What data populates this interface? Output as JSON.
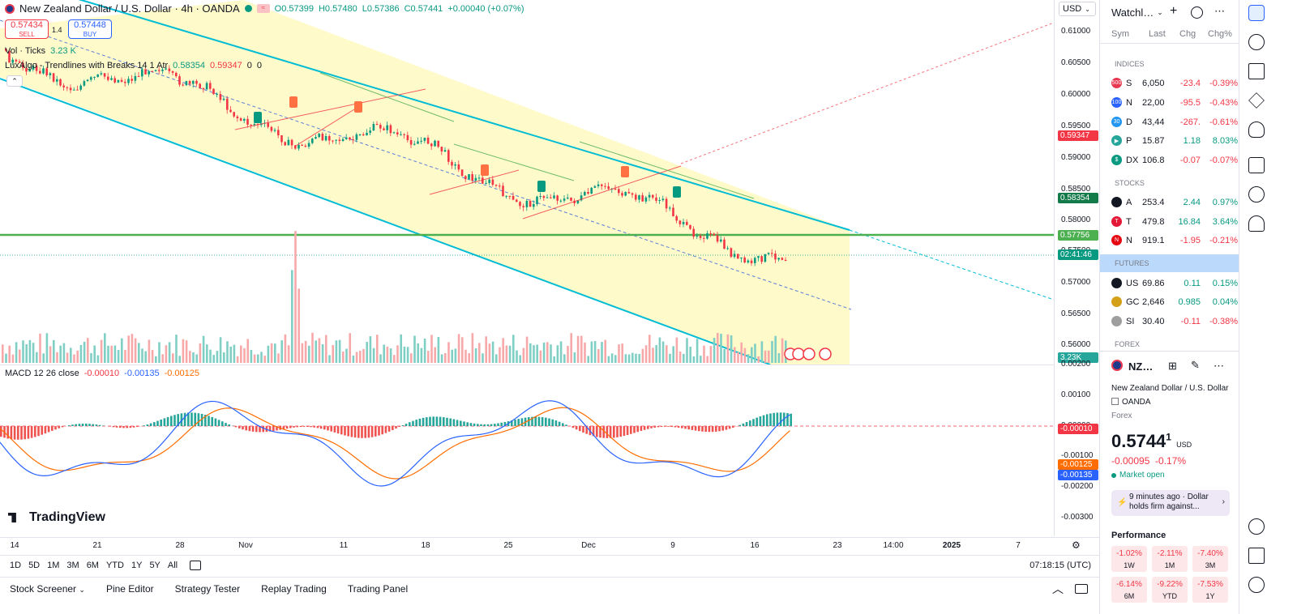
{
  "header": {
    "symbol_title": "New Zealand Dollar / U.S. Dollar · 4h · OANDA",
    "ohlc_o": "O0.57399",
    "ohlc_h": "H0.57480",
    "ohlc_l": "L0.57386",
    "ohlc_c": "C0.57441",
    "ohlc_change": "+0.00040 (+0.07%)",
    "sell_price": "0.57434",
    "sell_label": "SELL",
    "spread": "1.4",
    "buy_price": "0.57448",
    "buy_label": "BUY",
    "vol_label": "Vol · Ticks",
    "vol_value": "3.23 K",
    "indicator_name": "LuxAlgo - Trendlines with Breaks 14 1 Atr",
    "indicator_v1": "0.58354",
    "indicator_v2": "0.59347",
    "indicator_v3": "0",
    "indicator_v4": "0",
    "currency": "USD"
  },
  "price_axis": {
    "labels": [
      "0.61000",
      "0.60500",
      "0.60000",
      "0.59500",
      "0.59000",
      "0.58500",
      "0.58000",
      "0.57500",
      "0.57000",
      "0.56500",
      "0.56000"
    ],
    "tag_red": "0.59347",
    "tag_green_dark": "0.58354",
    "tag_green": "0.57756",
    "tag_countdown": "02:41:46",
    "tag_volume": "3.23K"
  },
  "macd": {
    "label": "MACD 12 26 close",
    "v1": "-0.00010",
    "v2": "-0.00135",
    "v3": "-0.00125",
    "axis": [
      "0.00200",
      "0.00100",
      "0.00000",
      "-0.00100",
      "-0.00200",
      "-0.00300"
    ],
    "tag_hist": "-0.00010",
    "tag_signal": "-0.00125",
    "tag_macd": "-0.00135"
  },
  "time_axis": [
    "14",
    "21",
    "28",
    "Nov",
    "11",
    "18",
    "25",
    "Dec",
    "9",
    "16",
    "23",
    "14:00",
    "2025",
    "7"
  ],
  "range_bar": {
    "ranges": [
      "1D",
      "5D",
      "1M",
      "3M",
      "6M",
      "YTD",
      "1Y",
      "5Y",
      "All"
    ],
    "clock": "07:18:15 (UTC)"
  },
  "bottom_tabs": [
    "Stock Screener",
    "Pine Editor",
    "Strategy Tester",
    "Replay Trading",
    "Trading Panel"
  ],
  "watermark": "TradingView",
  "watchlist": {
    "title": "Watchl…",
    "cols": [
      "Sym",
      "Last",
      "Chg",
      "Chg%"
    ],
    "sections": {
      "indices": "INDICES",
      "stocks": "STOCKS",
      "futures": "FUTURES",
      "forex": "FOREX"
    },
    "rows": [
      {
        "icon": "500",
        "icolor": "#e8384f",
        "sym": "S",
        "last": "6,050",
        "chg": "-23.4",
        "pct": "-0.39%",
        "dir": "down"
      },
      {
        "icon": "100",
        "icolor": "#2962ff",
        "sym": "N",
        "last": "22,00",
        "chg": "-95.5",
        "pct": "-0.43%",
        "dir": "down"
      },
      {
        "icon": "30",
        "icolor": "#2196f3",
        "sym": "D",
        "last": "43,44",
        "chg": "-267.",
        "pct": "-0.61%",
        "dir": "down"
      },
      {
        "icon": "▶",
        "icolor": "#26a69a",
        "sym": "P",
        "last": "15.87",
        "chg": "1.18",
        "pct": "8.03%",
        "dir": "up"
      },
      {
        "icon": "$",
        "icolor": "#089981",
        "sym": "DX",
        "last": "106.8",
        "chg": "-0.07",
        "pct": "-0.07%",
        "dir": "down"
      },
      {
        "icon": "",
        "icolor": "#131722",
        "sym": "A",
        "last": "253.4",
        "chg": "2.44",
        "pct": "0.97%",
        "dir": "up"
      },
      {
        "icon": "T",
        "icolor": "#e31937",
        "sym": "T",
        "last": "479.8",
        "chg": "16.84",
        "pct": "3.64%",
        "dir": "up"
      },
      {
        "icon": "N",
        "icolor": "#e50914",
        "sym": "N",
        "last": "919.1",
        "chg": "-1.95",
        "pct": "-0.21%",
        "dir": "down"
      },
      {
        "icon": "",
        "icolor": "#131722",
        "sym": "US",
        "last": "69.86",
        "chg": "0.11",
        "pct": "0.15%",
        "dir": "up"
      },
      {
        "icon": "",
        "icolor": "#d4a017",
        "sym": "GC",
        "last": "2,646",
        "chg": "0.985",
        "pct": "0.04%",
        "dir": "up"
      },
      {
        "icon": "",
        "icolor": "#9e9e9e",
        "sym": "SI",
        "last": "30.40",
        "chg": "-0.11",
        "pct": "-0.38%",
        "dir": "down"
      }
    ]
  },
  "details": {
    "short_sym": "NZ…",
    "name": "New Zealand Dollar / U.S. Dollar",
    "exchange": "OANDA",
    "type": "Forex",
    "price": "0.5744",
    "price_sup": "1",
    "price_ccy": "USD",
    "change": "-0.00095",
    "change_pct": "-0.17%",
    "status": "Market open",
    "news_time": "9 minutes ago",
    "news_text": "· Dollar holds firm against...",
    "news_line1": "9 minutes ago · Dollar",
    "news_line2": "holds firm against...",
    "performance_title": "Performance",
    "perf": [
      {
        "v": "-1.02%",
        "p": "1W"
      },
      {
        "v": "-2.11%",
        "p": "1M"
      },
      {
        "v": "-7.40%",
        "p": "3M"
      },
      {
        "v": "-6.14%",
        "p": "6M"
      },
      {
        "v": "-9.22%",
        "p": "YTD"
      },
      {
        "v": "-7.53%",
        "p": "1Y"
      }
    ]
  },
  "colors": {
    "up": "#089981",
    "down": "#f23645",
    "channel": "#00bcd4",
    "fill": "#fff9c4",
    "hline": "#4caf50",
    "accent": "#2962ff"
  }
}
